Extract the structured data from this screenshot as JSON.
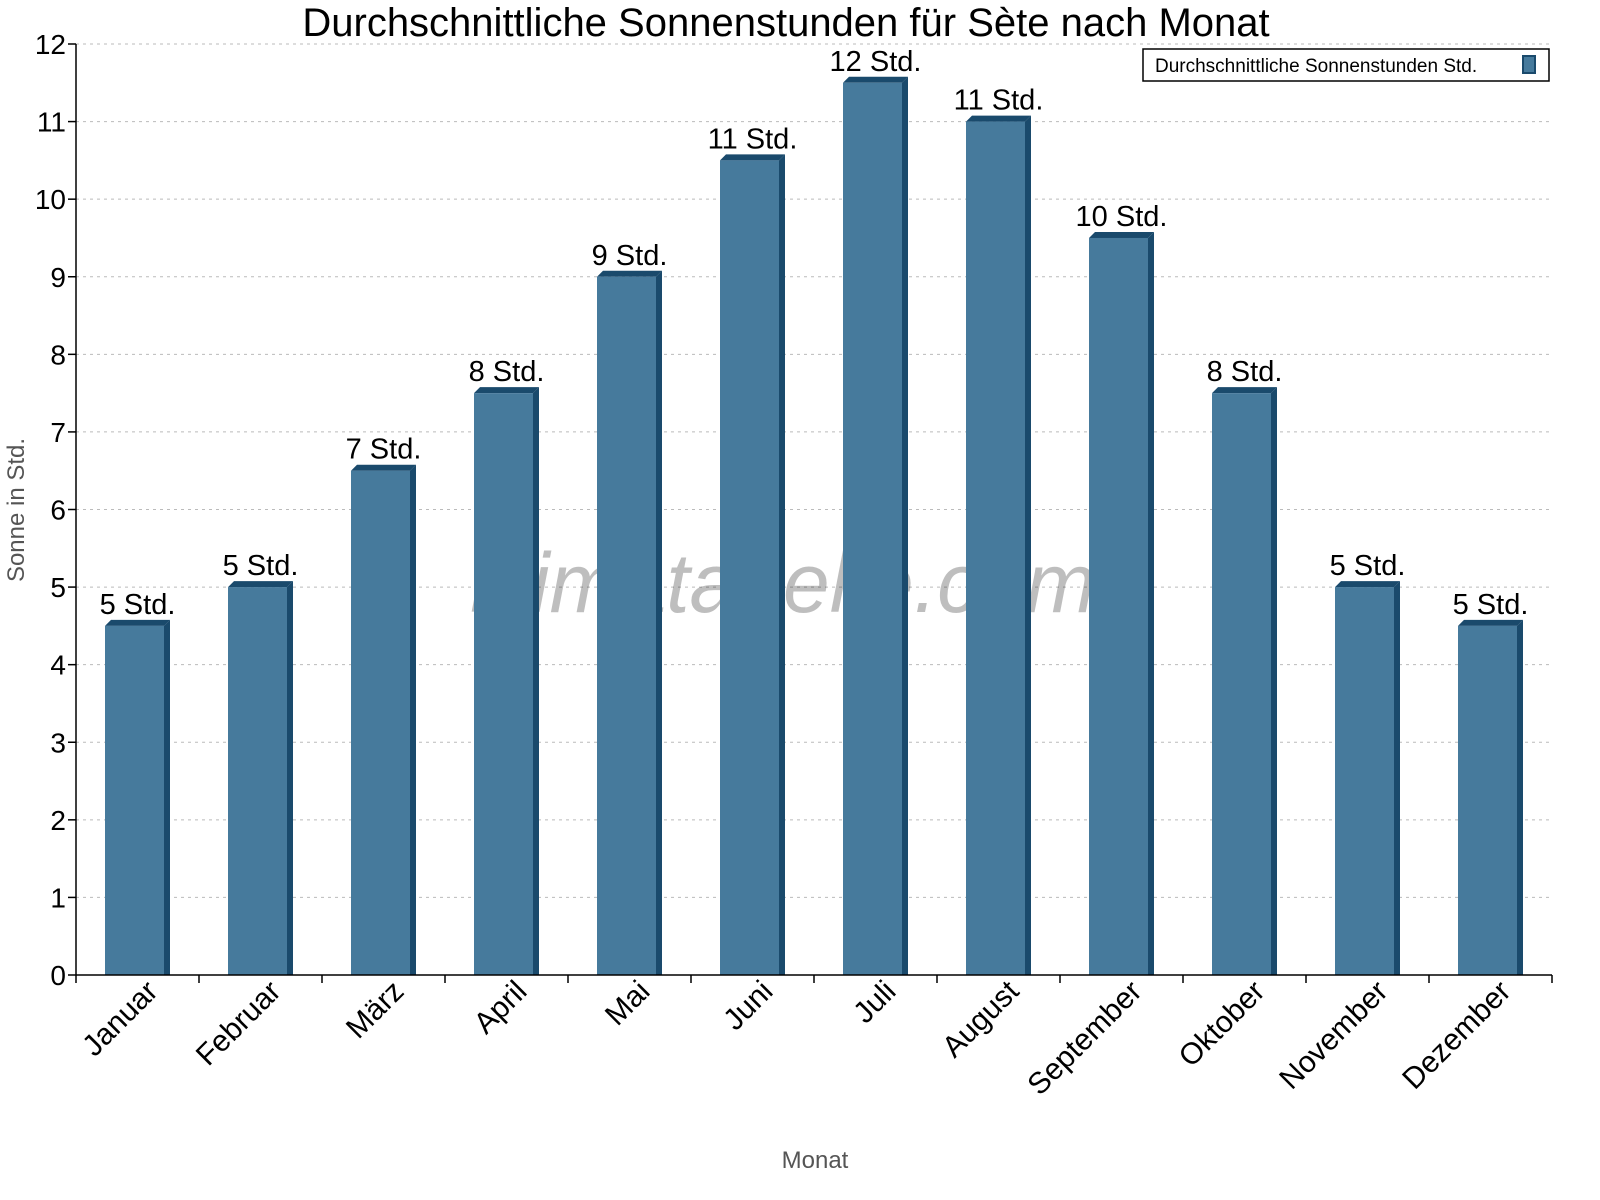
{
  "chart_data": {
    "type": "bar",
    "title": "Durchschnittliche Sonnenstunden für Sète nach Monat",
    "xlabel": "Monat",
    "ylabel": "Sonne in Std.",
    "ylim": [
      0,
      12
    ],
    "yticks": [
      0,
      1,
      2,
      3,
      4,
      5,
      6,
      7,
      8,
      9,
      10,
      11,
      12
    ],
    "grid": true,
    "legend_position": "top-right",
    "categories": [
      "Januar",
      "Februar",
      "März",
      "April",
      "Mai",
      "Juni",
      "Juli",
      "August",
      "September",
      "Oktober",
      "November",
      "Dezember"
    ],
    "series": [
      {
        "name": "Durchschnittliche Sonnenstunden Std.",
        "values": [
          4.5,
          5,
          6.5,
          7.5,
          9,
          10.5,
          11.5,
          11,
          9.5,
          7.5,
          5,
          4.5
        ],
        "data_labels": [
          "5 Std.",
          "5 Std.",
          "7 Std.",
          "8 Std.",
          "9 Std.",
          "11 Std.",
          "12 Std.",
          "11 Std.",
          "10 Std.",
          "8 Std.",
          "5 Std.",
          "5 Std."
        ],
        "color": "#467a9c",
        "side_color": "#1a4a6c"
      }
    ],
    "watermark": "klimatabelle.com"
  }
}
